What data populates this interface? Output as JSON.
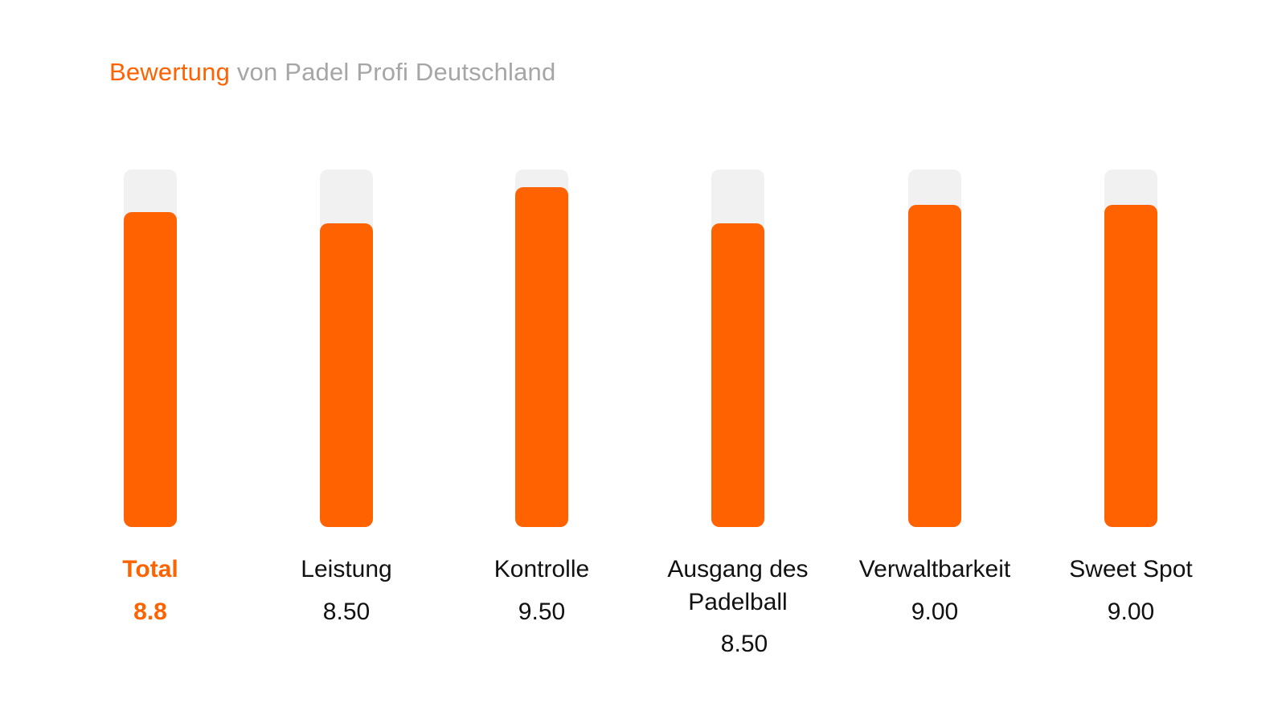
{
  "title": {
    "accent": "Bewertung",
    "rest": "von Padel Profi Deutschland"
  },
  "colors": {
    "bar": "#ff6200",
    "track": "#f1f1f1",
    "title_rest": "#a6a6a6",
    "text": "#111111"
  },
  "chart_data": {
    "type": "bar",
    "categories": [
      "Total",
      "Leistung",
      "Kontrolle",
      "Ausgang des Padelball",
      "Verwaltbarkeit",
      "Sweet Spot"
    ],
    "values": [
      8.8,
      8.5,
      9.5,
      8.5,
      9.0,
      9.0
    ],
    "value_labels": [
      "8.8",
      "8.50",
      "9.50",
      "8.50",
      "9.00",
      "9.00"
    ],
    "ylim": [
      0,
      10
    ],
    "grid": false,
    "legend": "none"
  }
}
